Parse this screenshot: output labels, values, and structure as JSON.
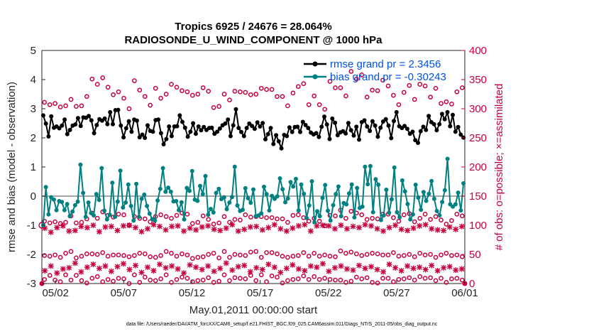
{
  "chart_data": {
    "type": "line",
    "title": "Tropics 6925 / 24676 = 28.064%",
    "subtitle": "RADIOSONDE_U_WIND_COMPONENT @ 1000 hPa",
    "xlabel": "May.01,2011 00:00:00 start",
    "ylabel": "rmse and bias (model - observation)",
    "ylabel_right": "# of obs: o=possible; ×=assimilated",
    "footer": "data file: /Users/raeder/DAI/ATM_forcXX/CAM6_setup/f.e21.FHIST_BGC.f09_025.CAM6assim.011/Diags_NTrS_2011-05/obs_diag_output.nc",
    "xlim": [
      0,
      31
    ],
    "ylim": [
      -3,
      5
    ],
    "ylim_right": [
      0,
      400
    ],
    "xticks": [
      {
        "v": 1,
        "label": "05/02"
      },
      {
        "v": 6,
        "label": "05/07"
      },
      {
        "v": 11,
        "label": "05/12"
      },
      {
        "v": 16,
        "label": "05/17"
      },
      {
        "v": 21,
        "label": "05/22"
      },
      {
        "v": 26,
        "label": "05/27"
      },
      {
        "v": 31,
        "label": "06/01"
      }
    ],
    "yticks": [
      "-3",
      "-2",
      "-1",
      "0",
      "1",
      "2",
      "3",
      "4",
      "5"
    ],
    "yticks_right": [
      "0",
      "50",
      "100",
      "150",
      "200",
      "250",
      "300",
      "350",
      "400"
    ],
    "zero_line": 0,
    "legend": {
      "position": "top-right",
      "entries": [
        "rmse grand pr = 2.3456",
        "bias grand pr = -0.30243"
      ]
    },
    "colors": {
      "rmse": "#000000",
      "bias": "#008080",
      "obs": "#c8003c",
      "zero": "#a6a6a6",
      "legend_text": "#0050e6"
    },
    "series": [
      {
        "name": "rmse",
        "axis": "left",
        "values": [
          2.77,
          2.49,
          2.05,
          2.74,
          2.35,
          2.39,
          2.33,
          2.42,
          2.63,
          2.13,
          2.27,
          2.42,
          2.46,
          2.68,
          2.41,
          2.7,
          2.69,
          2.75,
          2.6,
          2.16,
          2.44,
          2.64,
          2.59,
          2.66,
          2.47,
          2.88,
          2.47,
          2.95,
          2.96,
          2.42,
          2.02,
          2.33,
          2.57,
          2.21,
          2.63,
          2.59,
          2.02,
          2.11,
          2.0,
          2.43,
          2.24,
          2.21,
          2.61,
          2.63,
          2.16,
          1.78,
          1.96,
          2.39,
          2.06,
          2.39,
          2.4,
          2.77,
          2.55,
          2.35,
          2.04,
          2.21,
          2.5,
          2.14,
          2.39,
          2.26,
          2.37,
          2.27,
          2.34,
          2.35,
          2.14,
          2.21,
          2.32,
          2.43,
          2.49,
          2.63,
          2.06,
          2.43,
          2.98,
          2.34,
          2.2,
          2.06,
          2.34,
          2.49,
          2.41,
          2.31,
          2.53,
          2.39,
          2.51,
          1.95,
          2.13,
          2.34,
          1.79,
          2.09,
          1.88,
          1.64,
          2.1,
          2.06,
          2.36,
          2.2,
          2.37,
          2.38,
          2.2,
          2.55,
          2.44,
          2.34,
          2.18,
          2.12,
          2.16,
          2.03,
          2.38,
          2.73,
          2.46,
          1.96,
          2.66,
          2.52,
          2.09,
          2.19,
          2.23,
          2.15,
          2.51,
          2.26,
          2.08,
          2.38,
          1.94,
          2.54,
          2.6,
          2.39,
          2.24,
          2.57,
          2.42,
          2.04,
          2.35,
          2.56,
          2.64,
          2.42,
          1.99,
          2.58,
          2.88,
          2.4,
          2.34,
          2.41,
          2.31,
          2.14,
          2.21,
          1.92,
          1.83,
          2.23,
          2.38,
          2.27,
          2.75,
          2.54,
          2.47,
          2.26,
          2.47,
          2.82,
          2.64,
          2.88,
          2.4,
          2.79,
          2.21,
          2.37,
          2.11,
          2.01
        ]
      },
      {
        "name": "bias",
        "axis": "left",
        "values": [
          -1.0,
          0.31,
          -0.63,
          -0.04,
          -0.12,
          -0.48,
          -0.17,
          -0.2,
          -0.48,
          -0.27,
          -0.69,
          -0.53,
          -0.31,
          -0.19,
          1.08,
          0.11,
          -0.71,
          -0.22,
          -0.58,
          -0.66,
          0.07,
          -0.13,
          0.96,
          -0.5,
          -0.8,
          -0.64,
          0.46,
          -0.71,
          -0.19,
          0.87,
          -0.39,
          -0.22,
          0.4,
          -0.34,
          -0.84,
          0.42,
          -0.71,
          -0.09,
          0.05,
          -0.34,
          -0.6,
          -0.79,
          -0.84,
          -0.15,
          0.25,
          0.96,
          0.15,
          0.29,
          0.15,
          -0.18,
          -0.17,
          -0.48,
          -0.21,
          -0.8,
          0.28,
          0.18,
          0.86,
          -0.12,
          -0.16,
          0.35,
          0.07,
          0.69,
          -0.64,
          -0.44,
          -0.56,
          0.11,
          0.25,
          -0.1,
          -0.04,
          -0.45,
          -0.22,
          -0.03,
          1.01,
          -0.32,
          -0.51,
          -0.47,
          0.27,
          -0.07,
          -0.23,
          0.23,
          -0.69,
          -0.66,
          -0.59,
          0.32,
          0.07,
          -0.49,
          0.01,
          -0.09,
          -0.01,
          0.61,
          0.24,
          -0.21,
          -0.08,
          0.48,
          0.33,
          0.59,
          -0.49,
          0.4,
          0.08,
          -0.75,
          -0.32,
          0.51,
          -0.9,
          -0.52,
          -0.69,
          -0.06,
          0.38,
          -0.5,
          -0.84,
          -0.31,
          0.07,
          0.33,
          -0.69,
          -0.24,
          -0.28,
          0.09,
          0.4,
          -0.73,
          0.28,
          -0.41,
          -0.36,
          1.01,
          0.41,
          1.03,
          -0.55,
          0.58,
          0.39,
          -0.82,
          -0.66,
          0.22,
          -0.57,
          -0.11,
          0.98,
          -0.55,
          -0.73,
          0.54,
          0.16,
          -0.27,
          -0.8,
          -0.63,
          0.39,
          -0.05,
          -0.47,
          0.14,
          -0.16,
          0.08,
          0.52,
          -0.09,
          -0.51,
          -0.66,
          -0.2,
          0.2,
          1.28,
          -0.28,
          -0.36,
          -0.28,
          0.12,
          -0.49,
          0.44
        ]
      },
      {
        "name": "obs-possible",
        "axis": "right",
        "marker": "o",
        "values": [
          311,
          307,
          309,
          303,
          305,
          316,
          304,
          305,
          321,
          351,
          342,
          353,
          337,
          324,
          329,
          318,
          300,
          348,
          332,
          321,
          306,
          335,
          318,
          325,
          342,
          337,
          331,
          329,
          323,
          325,
          336,
          330,
          302,
          304,
          325,
          315,
          330,
          329,
          328,
          324,
          325,
          335,
          333,
          333,
          321,
          321,
          305,
          327,
          338,
          343,
          307,
          322,
          307,
          299,
          347,
          336,
          336,
          322,
          364,
          351,
          358,
          320,
          332,
          331,
          349,
          339,
          323,
          307,
          328,
          340,
          316,
          342,
          339,
          320,
          335,
          309,
          312,
          308,
          329,
          336
        ]
      },
      {
        "name": "obs-possible-low",
        "axis": "right",
        "marker": "o",
        "values": [
          107,
          104,
          106,
          103,
          105,
          116,
          104,
          105,
          111,
          121,
          112,
          123,
          117,
          114,
          119,
          118,
          100,
          115,
          112,
          111,
          106,
          115,
          118,
          115,
          112,
          117,
          121,
          119,
          103,
          105,
          116,
          110,
          102,
          104,
          115,
          105,
          110,
          109,
          118,
          114,
          115,
          115,
          113,
          113,
          111,
          111,
          105,
          117,
          118,
          113,
          107,
          112,
          107,
          99,
          117,
          116,
          126,
          112,
          124,
          121,
          118,
          110,
          112,
          111,
          119,
          119,
          113,
          107,
          118,
          120,
          106,
          112,
          119,
          110,
          115,
          109,
          102,
          108,
          119,
          116
        ]
      },
      {
        "name": "obs-possible-low2",
        "axis": "right",
        "marker": "o",
        "values": [
          7,
          14,
          6,
          3,
          15,
          6,
          14,
          5,
          1,
          9,
          12,
          3,
          7,
          4,
          9,
          8,
          0,
          15,
          2,
          11,
          6,
          5,
          8,
          15,
          2,
          7,
          11,
          9,
          3,
          5,
          6,
          10,
          2,
          4,
          15,
          5,
          10,
          9,
          8,
          14,
          5,
          15,
          3,
          13,
          11,
          1,
          5,
          7,
          8,
          13,
          7,
          12,
          7,
          9,
          7,
          6,
          6,
          2,
          4,
          11,
          8,
          10,
          2,
          1,
          9,
          9,
          3,
          7,
          8,
          10,
          6,
          12,
          9,
          10,
          5,
          9,
          2,
          8,
          9,
          6
        ]
      },
      {
        "name": "obs-possible-mid",
        "axis": "right",
        "marker": "o",
        "values": [
          48,
          47,
          49,
          45,
          52,
          55,
          44,
          47,
          51,
          51,
          50,
          53,
          47,
          49,
          49,
          48,
          46,
          48,
          52,
          51,
          46,
          45,
          48,
          55,
          52,
          47,
          51,
          49,
          43,
          45,
          46,
          50,
          52,
          44,
          55,
          45,
          50,
          49,
          48,
          54,
          55,
          45,
          53,
          53,
          51,
          47,
          45,
          47,
          48,
          53,
          47,
          52,
          47,
          49,
          47,
          46,
          56,
          52,
          54,
          51,
          48,
          50,
          52,
          51,
          49,
          49,
          53,
          47,
          48,
          50,
          46,
          52,
          49,
          50,
          45,
          49,
          52,
          48,
          49,
          46
        ]
      },
      {
        "name": "obs-assimilated",
        "axis": "right",
        "marker": "x",
        "values": [
          95,
          88,
          96,
          99,
          90,
          91,
          98,
          96,
          100,
          89,
          97,
          98,
          91,
          99,
          100,
          96,
          89,
          94,
          101,
          98,
          92,
          98,
          99,
          90,
          95,
          92,
          97,
          99,
          93,
          91,
          95,
          101,
          90,
          93,
          97,
          98,
          92,
          96,
          101,
          94,
          90,
          95,
          99,
          101,
          90,
          99,
          100,
          99,
          94,
          100,
          94,
          98,
          96,
          101,
          99,
          94,
          90,
          96,
          100,
          93,
          91,
          95,
          99,
          101,
          94,
          92,
          91,
          97,
          93,
          98
        ]
      },
      {
        "name": "obs-assimilated-low",
        "axis": "right",
        "marker": "x",
        "values": [
          22,
          30,
          18,
          25,
          27,
          35,
          20,
          28,
          33,
          26,
          30,
          21,
          29,
          34,
          24,
          31,
          19,
          28,
          22,
          33,
          27,
          30,
          25,
          18,
          32,
          28,
          24,
          30,
          21,
          26,
          35,
          23,
          29,
          31,
          20,
          27,
          24,
          33,
          28,
          19,
          26,
          32,
          25,
          22,
          30,
          28,
          34,
          21,
          27,
          30,
          25,
          23,
          31,
          26,
          29,
          24,
          20,
          33,
          27,
          22,
          30,
          26,
          28,
          24,
          31,
          22,
          27,
          29,
          23,
          25
        ]
      }
    ]
  }
}
